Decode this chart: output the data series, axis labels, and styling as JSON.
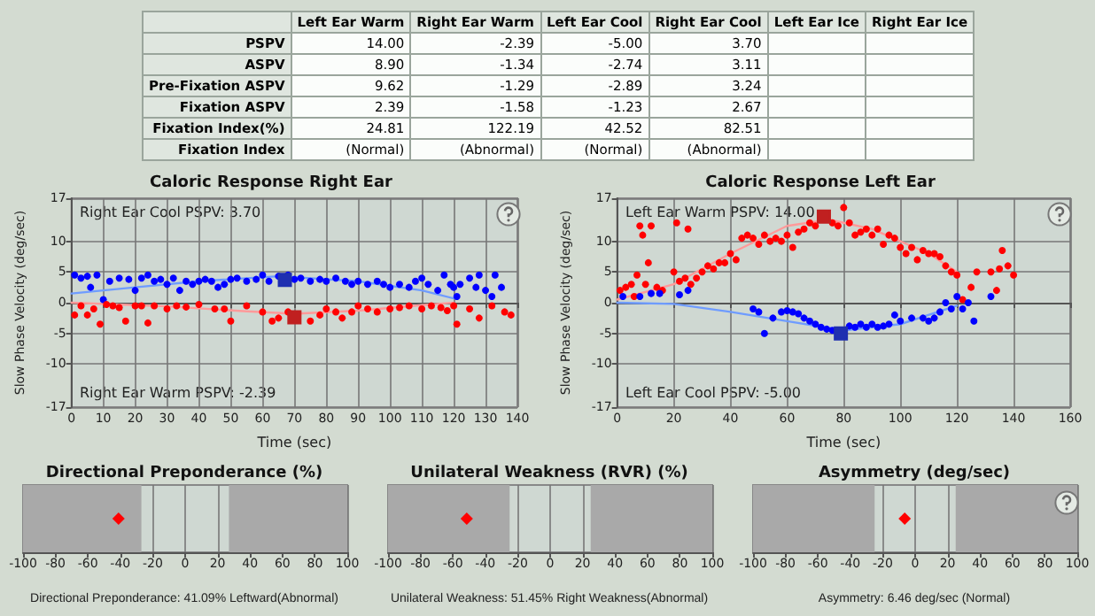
{
  "chart_data": [
    {
      "type": "other",
      "categories": [
        "Left Ear Warm",
        "Right Ear Warm",
        "Left Ear Cool",
        "Right Ear Cool",
        "Left Ear Ice",
        "Right Ear Ice"
      ],
      "y_categories": [
        "PSPV",
        "ASPV",
        "Pre-Fixation ASPV",
        "Fixation ASPV",
        "Fixation Index(%)",
        "Fixation Index"
      ],
      "cell_labels": [
        [
          "14.00",
          "-2.39",
          "-5.00",
          "3.70",
          null,
          null
        ],
        [
          "8.90",
          "-1.34",
          "-2.74",
          "3.11",
          null,
          null
        ],
        [
          "9.62",
          "-1.29",
          "-2.89",
          "3.24",
          null,
          null
        ],
        [
          "2.39",
          "-1.58",
          "-1.23",
          "2.67",
          null,
          null
        ],
        [
          "24.81",
          "122.19",
          "42.52",
          "82.51",
          null,
          null
        ],
        [
          "(Normal)",
          "(Abnormal)",
          "(Normal)",
          "(Abnormal)",
          null,
          null
        ]
      ]
    },
    {
      "type": "scatter",
      "title": "Caloric Response Right Ear",
      "xlabel": "Time (sec)",
      "ylabel": "Slow Phase Velocity (deg/sec)",
      "xlim": [
        0,
        140
      ],
      "xticks": [
        0,
        10,
        20,
        30,
        40,
        50,
        60,
        70,
        80,
        90,
        100,
        110,
        120,
        130,
        140
      ],
      "ylim": [
        -17,
        17
      ],
      "yticks": [
        -17,
        -10,
        -5,
        0,
        5,
        10,
        17
      ],
      "grid": true,
      "annotations": [
        "Right Ear Cool PSPV: 3.70",
        "Right Ear Warm PSPV: -2.39"
      ],
      "series": [
        {
          "type": "scatter",
          "marker": "circle",
          "color": "#0000ff",
          "x": [
            1,
            3,
            5,
            6,
            8,
            10,
            12,
            15,
            18,
            20,
            22,
            24,
            26,
            28,
            30,
            32,
            34,
            36,
            38,
            40,
            42,
            44,
            46,
            48,
            50,
            52,
            55,
            58,
            60,
            62,
            65,
            68,
            70,
            72,
            75,
            78,
            80,
            83,
            86,
            88,
            90,
            93,
            96,
            98,
            100,
            103,
            106,
            108,
            110,
            112,
            115,
            117,
            119,
            120,
            121,
            122,
            125,
            127,
            128,
            130,
            132,
            133,
            135
          ],
          "values": [
            4.5,
            4,
            4.3,
            2.5,
            4.5,
            0.5,
            3.5,
            4,
            3.8,
            2,
            4,
            4.5,
            3.5,
            3.8,
            3,
            4,
            2,
            3.5,
            3,
            3.5,
            3.8,
            3.5,
            2.5,
            3,
            3.8,
            4,
            3.5,
            3.8,
            4.5,
            3.5,
            4.3,
            4.5,
            3.8,
            4,
            3.5,
            3.8,
            3.5,
            4,
            3.5,
            3,
            3.5,
            3,
            3.5,
            3,
            2.5,
            3,
            2.5,
            3.5,
            4,
            3,
            2,
            4.5,
            3,
            2.5,
            1,
            3,
            4,
            2.5,
            4.5,
            2,
            1,
            4.5,
            2.5
          ]
        },
        {
          "type": "scatter",
          "marker": "circle",
          "color": "#ff0000",
          "x": [
            1,
            3,
            5,
            7,
            9,
            11,
            13,
            15,
            17,
            20,
            22,
            24,
            26,
            30,
            33,
            36,
            40,
            45,
            48,
            50,
            55,
            60,
            63,
            65,
            68,
            72,
            75,
            78,
            80,
            83,
            85,
            88,
            90,
            93,
            96,
            100,
            103,
            106,
            110,
            113,
            116,
            118,
            120,
            121,
            125,
            128,
            132,
            136,
            138
          ],
          "values": [
            -2,
            -0.5,
            -2,
            -1,
            -3.5,
            -0.3,
            -0.5,
            -0.8,
            -3,
            -0.5,
            -0.5,
            -3.3,
            -0.5,
            -1,
            -0.5,
            -0.7,
            -0.3,
            -1,
            -1,
            -3,
            -0.5,
            -1.5,
            -3,
            -2.5,
            -1.5,
            null,
            -3,
            -2,
            -1,
            -1.5,
            -2.5,
            -1.5,
            -0.5,
            -1,
            -1.5,
            -1,
            -0.8,
            -0.5,
            -1,
            -0.5,
            -0.8,
            -1.3,
            -0.5,
            -3.5,
            -1,
            -2.5,
            -0.5,
            -1.5,
            -2
          ]
        },
        {
          "type": "line",
          "marker": "none",
          "line_style": "solid",
          "color": "#6f9cff",
          "x": [
            0,
            20,
            40,
            65,
            90,
            110,
            120
          ],
          "values": [
            1.5,
            2.5,
            3.5,
            4.3,
            3.5,
            2,
            0.7
          ]
        },
        {
          "type": "line",
          "marker": "none",
          "line_style": "solid",
          "color": "#ff9a9a",
          "x": [
            0,
            30,
            55,
            70,
            90,
            110,
            120
          ],
          "values": [
            0,
            -0.6,
            -1.4,
            -1.8,
            -1.3,
            -0.4,
            0
          ]
        },
        {
          "type": "scatter",
          "marker": "square",
          "color": "#1f2fb0",
          "x": [
            67
          ],
          "values": [
            3.7
          ]
        },
        {
          "type": "scatter",
          "marker": "square",
          "color": "#c02020",
          "x": [
            70
          ],
          "values": [
            -2.39
          ]
        }
      ]
    },
    {
      "type": "scatter",
      "title": "Caloric Response Left Ear",
      "xlabel": "Time (sec)",
      "ylabel": "Slow Phase Velocity (deg/sec)",
      "xlim": [
        0,
        160
      ],
      "xticks": [
        0,
        20,
        40,
        60,
        80,
        100,
        120,
        140,
        160
      ],
      "ylim": [
        -17,
        17
      ],
      "yticks": [
        -17,
        -10,
        -5,
        0,
        5,
        10,
        17
      ],
      "grid": true,
      "annotations": [
        "Left Ear Warm PSPV: 14.00",
        "Left Ear Cool PSPV: -5.00"
      ],
      "series": [
        {
          "type": "scatter",
          "marker": "circle",
          "color": "#ff0000",
          "x": [
            1,
            3,
            5,
            6,
            7,
            8,
            9,
            10,
            11,
            12,
            14,
            16,
            20,
            21,
            22,
            24,
            25,
            26,
            28,
            30,
            32,
            34,
            36,
            38,
            40,
            42,
            44,
            46,
            48,
            50,
            52,
            54,
            56,
            58,
            60,
            62,
            64,
            66,
            68,
            70,
            76,
            78,
            80,
            82,
            84,
            86,
            88,
            90,
            92,
            94,
            96,
            98,
            100,
            102,
            104,
            106,
            108,
            110,
            112,
            114,
            116,
            118,
            120,
            122,
            125,
            127,
            132,
            134,
            135,
            136,
            138,
            140
          ],
          "values": [
            2,
            2.5,
            3,
            1,
            4.5,
            12.5,
            11,
            3,
            6.5,
            12.5,
            2.5,
            2,
            5,
            13,
            3.5,
            4,
            12,
            3,
            4,
            5,
            6,
            5.5,
            6.5,
            6.5,
            8,
            7,
            10.5,
            11,
            10.5,
            9.5,
            11,
            10,
            10.5,
            10,
            11,
            9,
            11.5,
            12,
            13,
            12.5,
            13,
            12.5,
            15.5,
            13,
            11,
            11.5,
            12,
            11,
            12,
            9.5,
            11,
            10.5,
            9,
            8,
            9,
            7,
            8.5,
            8,
            8,
            7.5,
            6,
            5,
            4.5,
            0.5,
            2.5,
            5,
            5,
            2,
            5.5,
            8.5,
            6,
            4.5
          ]
        },
        {
          "type": "scatter",
          "marker": "circle",
          "color": "#0000ff",
          "x": [
            2,
            8,
            12,
            15,
            22,
            25,
            48,
            50,
            52,
            55,
            58,
            60,
            62,
            64,
            66,
            68,
            70,
            72,
            74,
            76,
            80,
            82,
            84,
            86,
            88,
            90,
            92,
            94,
            96,
            98,
            100,
            104,
            108,
            110,
            112,
            114,
            116,
            118,
            120,
            122,
            124,
            126,
            132
          ],
          "values": [
            1,
            1,
            1.5,
            1.5,
            1.3,
            2,
            -1,
            -1.5,
            -5,
            -2.5,
            -1.5,
            -1.3,
            -1.5,
            -1.8,
            -2.5,
            -3,
            -3.5,
            -4,
            -4.3,
            -4.5,
            null,
            -3.8,
            -4,
            -3.5,
            -4,
            -3.5,
            -4,
            -3.8,
            -3.5,
            -2,
            -3,
            -2.5,
            -2.5,
            -3,
            -2.5,
            -1.5,
            0,
            -1,
            1,
            -1,
            0,
            -3,
            1
          ]
        },
        {
          "type": "line",
          "marker": "none",
          "line_style": "solid",
          "color": "#ff9a9a",
          "x": [
            0,
            20,
            40,
            60,
            75,
            90,
            110,
            120
          ],
          "values": [
            0.5,
            3,
            8,
            12.5,
            13.5,
            12,
            8,
            5
          ]
        },
        {
          "type": "line",
          "marker": "none",
          "line_style": "solid",
          "color": "#6f9cff",
          "x": [
            0,
            20,
            40,
            60,
            80,
            100,
            120
          ],
          "values": [
            0,
            -0.2,
            -1.5,
            -3,
            -4.5,
            -3.5,
            -0.5
          ]
        },
        {
          "type": "scatter",
          "marker": "square",
          "color": "#c02020",
          "x": [
            73
          ],
          "values": [
            14
          ]
        },
        {
          "type": "scatter",
          "marker": "square",
          "color": "#1f2fb0",
          "x": [
            79
          ],
          "values": [
            -5
          ]
        }
      ]
    },
    {
      "type": "scatter",
      "orientation": "horizontal",
      "categories": [
        null
      ],
      "title": "Directional Preponderance (%)",
      "xlim": [
        -100,
        100
      ],
      "xticks": [
        -100,
        -80,
        -60,
        -40,
        -20,
        0,
        20,
        40,
        60,
        80,
        100
      ],
      "grid": "x",
      "marker": "diamond",
      "annotations": [
        "Directional Preponderance: 41.09% Leftward(Abnormal)"
      ],
      "bands": [
        {
          "axis": "x",
          "from": -100,
          "to": -27,
          "color": "#a9a9a9"
        },
        {
          "axis": "x",
          "from": 27,
          "to": 100,
          "color": "#a9a9a9"
        }
      ],
      "values": [
        -41.09
      ],
      "color": "#ff0000"
    },
    {
      "type": "scatter",
      "orientation": "horizontal",
      "categories": [
        null
      ],
      "title": "Unilateral Weakness (RVR) (%)",
      "xlim": [
        -100,
        100
      ],
      "xticks": [
        -100,
        -80,
        -60,
        -40,
        -20,
        0,
        20,
        40,
        60,
        80,
        100
      ],
      "grid": "x",
      "marker": "diamond",
      "annotations": [
        "Unilateral Weakness: 51.45% Right Weakness(Abnormal)"
      ],
      "bands": [
        {
          "axis": "x",
          "from": -100,
          "to": -25,
          "color": "#a9a9a9"
        },
        {
          "axis": "x",
          "from": 25,
          "to": 100,
          "color": "#a9a9a9"
        }
      ],
      "values": [
        -51.45
      ],
      "color": "#ff0000"
    },
    {
      "type": "scatter",
      "orientation": "horizontal",
      "categories": [
        null
      ],
      "title": "Asymmetry (deg/sec)",
      "xlim": [
        -100,
        100
      ],
      "xticks": [
        -100,
        -80,
        -60,
        -40,
        -20,
        0,
        20,
        40,
        60,
        80,
        100
      ],
      "grid": "x",
      "marker": "diamond",
      "annotations": [
        "Asymmetry: 6.46 deg/sec (Normal)"
      ],
      "bands": [
        {
          "axis": "x",
          "from": -100,
          "to": -25,
          "color": "#a9a9a9"
        },
        {
          "axis": "x",
          "from": 25,
          "to": 100,
          "color": "#a9a9a9"
        }
      ],
      "values": [
        -6.46
      ],
      "color": "#ff0000"
    }
  ]
}
